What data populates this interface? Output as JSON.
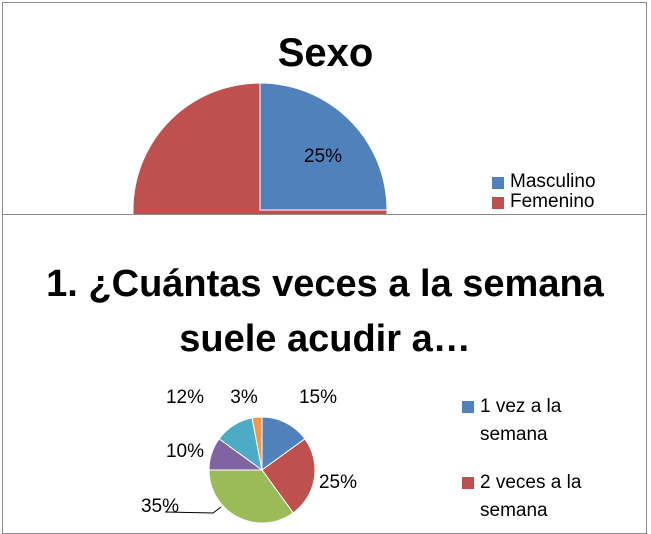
{
  "chart_data": [
    {
      "type": "pie",
      "title": "Sexo",
      "categories": [
        "Masculino",
        "Femenino"
      ],
      "values": [
        25,
        75
      ],
      "value_labels": [
        "25%",
        null
      ],
      "colors": [
        "#4f81bd",
        "#c0504d"
      ]
    },
    {
      "type": "pie",
      "title": "1. ¿Cuántas veces a la semana suele acudir a…",
      "categories": [
        "1 vez a la semana",
        "2 veces a la semana",
        null,
        null,
        null,
        null
      ],
      "values": [
        15,
        25,
        35,
        10,
        12,
        3
      ],
      "value_labels": [
        "15%",
        "25%",
        "35%",
        "10%",
        "12%",
        "3%"
      ],
      "colors": [
        "#4f81bd",
        "#c0504d",
        "#9bbb59",
        "#8064a2",
        "#4bacc6",
        "#f79646"
      ]
    }
  ]
}
